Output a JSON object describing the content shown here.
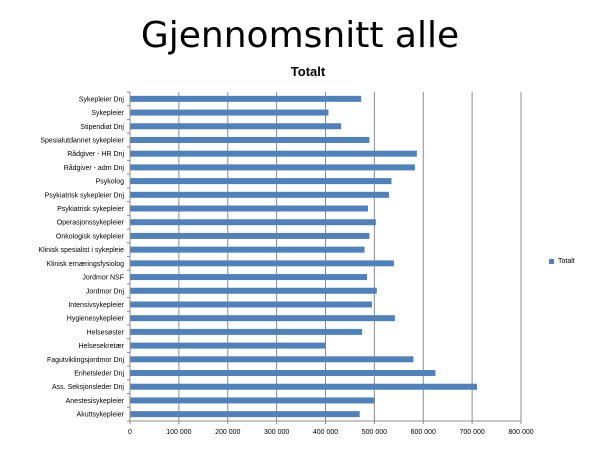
{
  "slide": {
    "title": "Gjennomsnitt alle"
  },
  "chart_data": {
    "type": "bar",
    "orientation": "horizontal",
    "title": "Totalt",
    "xlabel": "",
    "ylabel": "",
    "categories": [
      "Sykepleier Dnj",
      "Sykepleier",
      "Stipendiat Dnj",
      "Spesialutdannet sykepleier",
      "Rådgiver - HR Dnj",
      "Rådgiver - adm Dnj",
      "Psykolog",
      "Psykiatrisk sykepleier Dnj",
      "Psykiatrisk sykepleier",
      "Operasjonssykepleier",
      "Onkologisk sykepleier",
      "Klinisk spesialist i sykepleie",
      "Klinisk ernæringsfysiolog",
      "Jordmor NSF",
      "Jordmor Dnj",
      "Intensivsykepleier",
      "Hygienesykepleier",
      "Helsesøster",
      "Helsesekretær",
      "Fagutviklingsjordmor Dnj",
      "Enhetsleder Dnj",
      "Ass. Seksjonsleder Dnj",
      "Anestesisykepleier",
      "Akuttsykepleier"
    ],
    "series": [
      {
        "name": "Totalt",
        "values": [
          473000,
          406000,
          432000,
          490000,
          587000,
          583000,
          535000,
          530000,
          487000,
          503000,
          490000,
          480000,
          540000,
          485000,
          505000,
          495000,
          542000,
          475000,
          400000,
          580000,
          625000,
          710000,
          500000,
          470000
        ]
      }
    ],
    "xlim": [
      0,
      800000
    ],
    "xticks": [
      0,
      100000,
      200000,
      300000,
      400000,
      500000,
      600000,
      700000,
      800000
    ],
    "xtick_labels": [
      "0",
      "100 000",
      "200 000",
      "300 000",
      "400 000",
      "500 000",
      "600 000",
      "700 000",
      "800 000"
    ],
    "grid": true,
    "legend_position": "right",
    "bar_color": "#4f81bd",
    "grid_color": "#8c8c8c",
    "axis_color": "#8c8c8c"
  }
}
